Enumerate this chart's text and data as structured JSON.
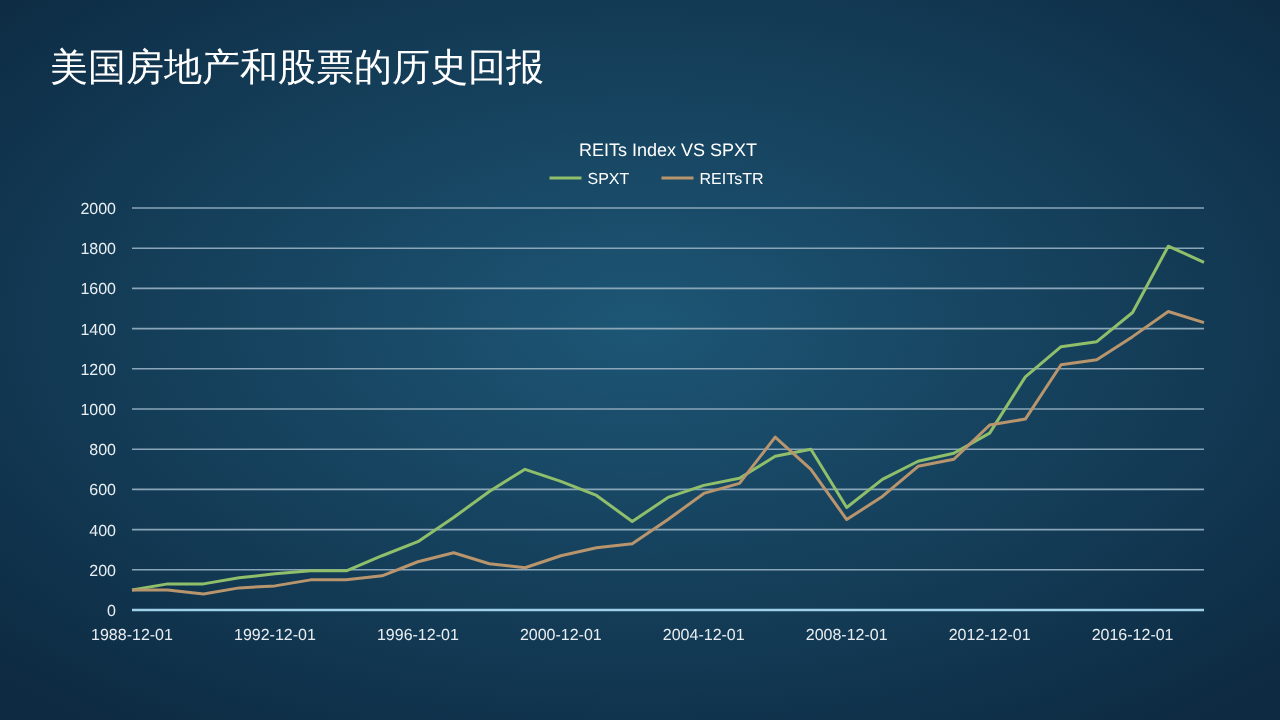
{
  "chart_data": {
    "type": "line",
    "title": "美国房地产和股票的历史回报",
    "subtitle": "REITs Index VS SPXT",
    "x": [
      "1988-12-01",
      "1989-12-01",
      "1990-12-01",
      "1991-12-01",
      "1992-12-01",
      "1993-12-01",
      "1994-12-01",
      "1995-12-01",
      "1996-12-01",
      "1997-12-01",
      "1998-12-01",
      "1999-12-01",
      "2000-12-01",
      "2001-12-01",
      "2002-12-01",
      "2003-12-01",
      "2004-12-01",
      "2005-12-01",
      "2006-12-01",
      "2007-12-01",
      "2008-12-01",
      "2009-12-01",
      "2010-12-01",
      "2011-12-01",
      "2012-12-01",
      "2013-12-01",
      "2014-12-01",
      "2015-12-01",
      "2016-12-01",
      "2017-12-01",
      "2018-12-01"
    ],
    "series": [
      {
        "name": "SPXT",
        "color": "#8fbf6a",
        "values": [
          100,
          130,
          130,
          160,
          180,
          195,
          195,
          270,
          340,
          460,
          590,
          700,
          640,
          570,
          440,
          560,
          620,
          655,
          765,
          800,
          510,
          650,
          740,
          780,
          880,
          1160,
          1310,
          1335,
          1480,
          1810,
          1730
        ]
      },
      {
        "name": "REITsTR",
        "color": "#b8956c",
        "values": [
          100,
          100,
          80,
          110,
          120,
          150,
          150,
          170,
          240,
          285,
          230,
          210,
          270,
          310,
          330,
          450,
          580,
          630,
          860,
          700,
          450,
          565,
          715,
          750,
          920,
          950,
          1220,
          1245,
          1360,
          1485,
          1430
        ]
      }
    ],
    "xlim": [
      "1988-12-01",
      "2018-12-01"
    ],
    "xticks": [
      "1988-12-01",
      "1992-12-01",
      "1996-12-01",
      "2000-12-01",
      "2004-12-01",
      "2008-12-01",
      "2012-12-01",
      "2016-12-01"
    ],
    "ylim": [
      0,
      2000
    ],
    "yticks": [
      0,
      200,
      400,
      600,
      800,
      1000,
      1200,
      1400,
      1600,
      1800,
      2000
    ],
    "grid": "y",
    "legend": "top",
    "marker": "none",
    "line_style": "solid"
  }
}
